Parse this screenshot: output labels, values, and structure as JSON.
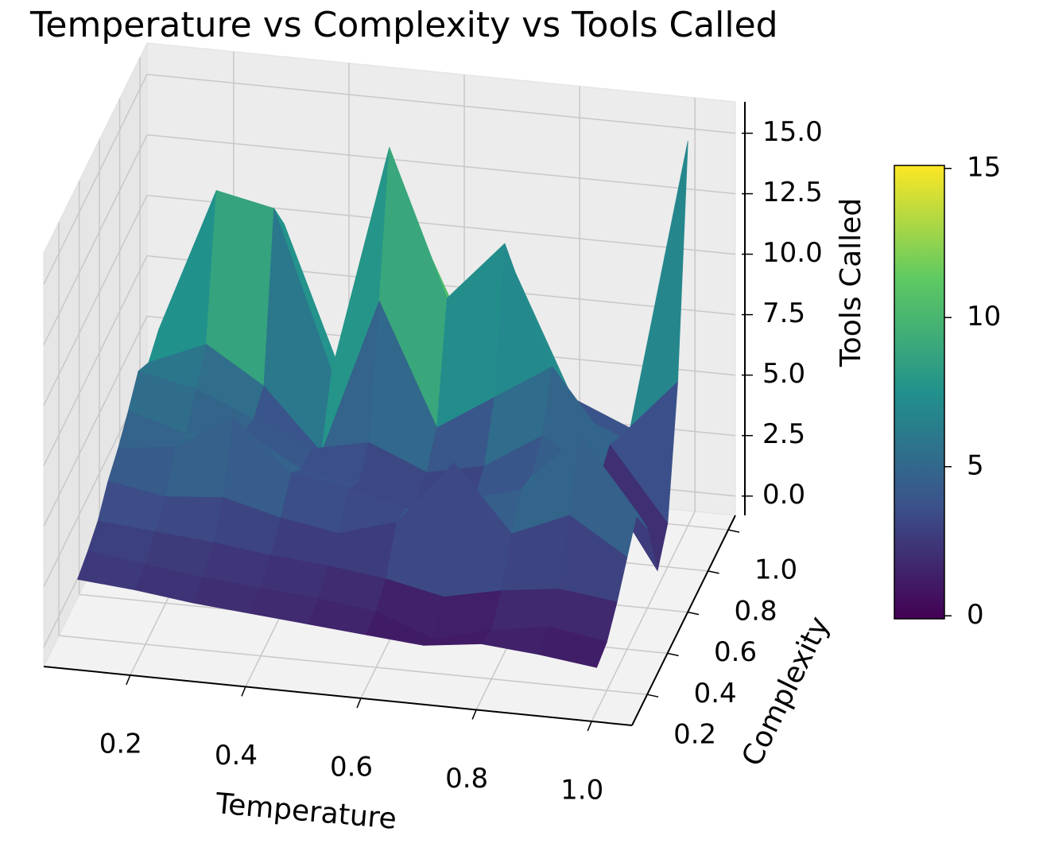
{
  "chart_data": {
    "type": "surface3d",
    "title": "Temperature vs Complexity vs Tools Called",
    "x_label": "Temperature",
    "y_label": "Complexity",
    "z_label": "Tools Called",
    "x": [
      0.1,
      0.2,
      0.3,
      0.4,
      0.5,
      0.6,
      0.7,
      0.8,
      0.9,
      1.0
    ],
    "y": [
      0.1,
      0.2,
      0.3,
      0.4,
      0.5,
      0.6,
      0.7,
      0.8,
      0.9,
      1.0
    ],
    "z": [
      [
        2.5,
        2.3,
        2.0,
        1.8,
        1.6,
        1.4,
        1.2,
        1.5,
        1.3,
        1.0
      ],
      [
        2.8,
        2.5,
        2.2,
        2.0,
        1.8,
        1.5,
        0.6,
        1.2,
        1.6,
        1.2
      ],
      [
        3.2,
        3.0,
        2.8,
        2.5,
        2.3,
        2.0,
        1.5,
        2.0,
        2.3,
        2.0
      ],
      [
        4.0,
        3.6,
        3.8,
        3.2,
        2.8,
        3.5,
        6.2,
        3.5,
        4.5,
        3.0
      ],
      [
        4.5,
        4.8,
        6.3,
        4.2,
        3.8,
        3.2,
        3.8,
        4.5,
        7.0,
        4.0
      ],
      [
        5.2,
        4.5,
        4.8,
        3.5,
        3.2,
        2.8,
        3.0,
        4.2,
        5.0,
        2.5
      ],
      [
        6.0,
        5.5,
        4.5,
        3.5,
        4.0,
        3.0,
        3.5,
        5.0,
        3.5,
        -0.1
      ],
      [
        5.5,
        6.5,
        5.0,
        2.5,
        9.0,
        4.0,
        5.5,
        7.0,
        4.0,
        1.0
      ],
      [
        6.0,
        12.0,
        11.5,
        5.0,
        14.5,
        8.5,
        11.0,
        4.5,
        3.5,
        6.0
      ],
      [
        4.5,
        9.0,
        10.0,
        4.0,
        12.0,
        7.0,
        9.0,
        4.0,
        3.0,
        15.1
      ]
    ],
    "colormap": "viridis",
    "xlim": [
      0.05,
      1.07
    ],
    "ylim": [
      0.05,
      1.07
    ],
    "zlim": [
      -0.8,
      16.3
    ],
    "xticks": [
      0.2,
      0.4,
      0.6,
      0.8,
      {
        "value": 1,
        "label": "1.0"
      }
    ],
    "yticks": [
      0.2,
      0.4,
      0.6,
      0.8,
      {
        "value": 1,
        "label": "1.0"
      }
    ],
    "zticks": [
      {
        "value": 0,
        "label": "0.0"
      },
      2.5,
      {
        "value": 5,
        "label": "5.0"
      },
      7.5,
      {
        "value": 10,
        "label": "10.0"
      },
      12.5,
      {
        "value": 15,
        "label": "15.0"
      }
    ],
    "clim": [
      -0.1,
      15.1
    ],
    "cticks": [
      0,
      5,
      10,
      15
    ],
    "grid": true
  }
}
